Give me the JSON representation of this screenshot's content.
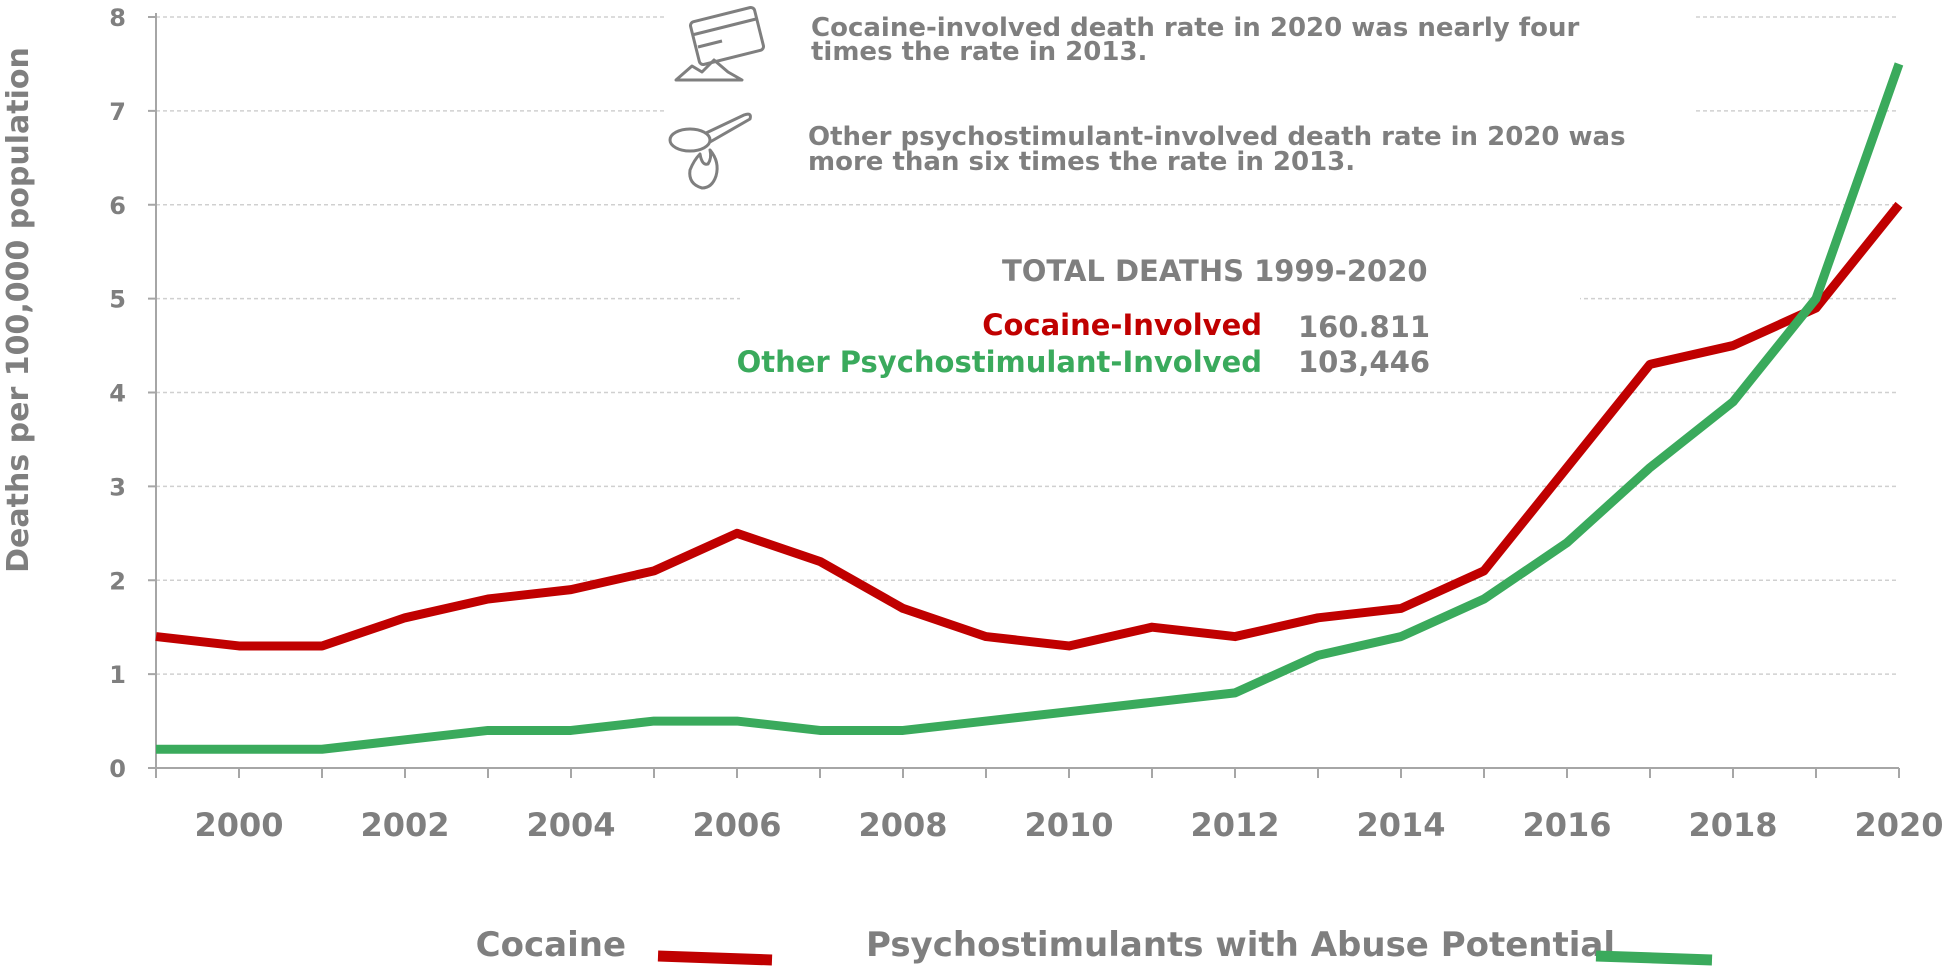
{
  "chart_data": {
    "type": "line",
    "title": "",
    "xlabel": "",
    "ylabel": "Deaths per 100,000 population",
    "xlim": [
      1999,
      2020
    ],
    "ylim": [
      0,
      8
    ],
    "grid": true,
    "x": [
      1999,
      2000,
      2001,
      2002,
      2003,
      2004,
      2005,
      2006,
      2007,
      2008,
      2009,
      2010,
      2011,
      2012,
      2013,
      2014,
      2015,
      2016,
      2017,
      2018,
      2019,
      2020
    ],
    "x_tick_labels": [
      "2000",
      "2002",
      "2004",
      "2006",
      "2008",
      "2010",
      "2012",
      "2014",
      "2016",
      "2018",
      "2020"
    ],
    "y_tick_labels": [
      "0",
      "1",
      "2",
      "3",
      "4",
      "5",
      "6",
      "7",
      "8"
    ],
    "series": [
      {
        "name": "Cocaine",
        "color": "#c00000",
        "values": [
          1.4,
          1.3,
          1.3,
          1.6,
          1.8,
          1.9,
          2.1,
          2.5,
          2.2,
          1.7,
          1.4,
          1.3,
          1.5,
          1.4,
          1.6,
          1.7,
          2.1,
          3.2,
          4.3,
          4.5,
          4.9,
          6.0
        ]
      },
      {
        "name": "Psychostimulants with Abuse Potential",
        "color": "#3aaa5c",
        "values": [
          0.2,
          0.2,
          0.2,
          0.3,
          0.4,
          0.4,
          0.5,
          0.5,
          0.4,
          0.4,
          0.5,
          0.6,
          0.7,
          0.8,
          1.2,
          1.4,
          1.8,
          2.4,
          3.2,
          3.9,
          5.0,
          7.5
        ]
      }
    ],
    "legend_position": "bottom",
    "annotations": {
      "cocaine_note_line1": "Cocaine-involved death rate in 2020 was nearly four",
      "cocaine_note_line2": "times the rate in 2013.",
      "psycho_note_line1": "Other psychostimulant-involved death rate in 2020 was",
      "psycho_note_line2": "more than six times the rate in 2013.",
      "totals_heading": "TOTAL DEATHS  1999-2020",
      "cocaine_total_label": "Cocaine-Involved",
      "cocaine_total_value": "160.811",
      "psycho_total_label": "Other Psychostimulant-Involved",
      "psycho_total_value": "103,446"
    },
    "icons": [
      "cocaine-card-icon",
      "spoon-flame-icon"
    ]
  }
}
